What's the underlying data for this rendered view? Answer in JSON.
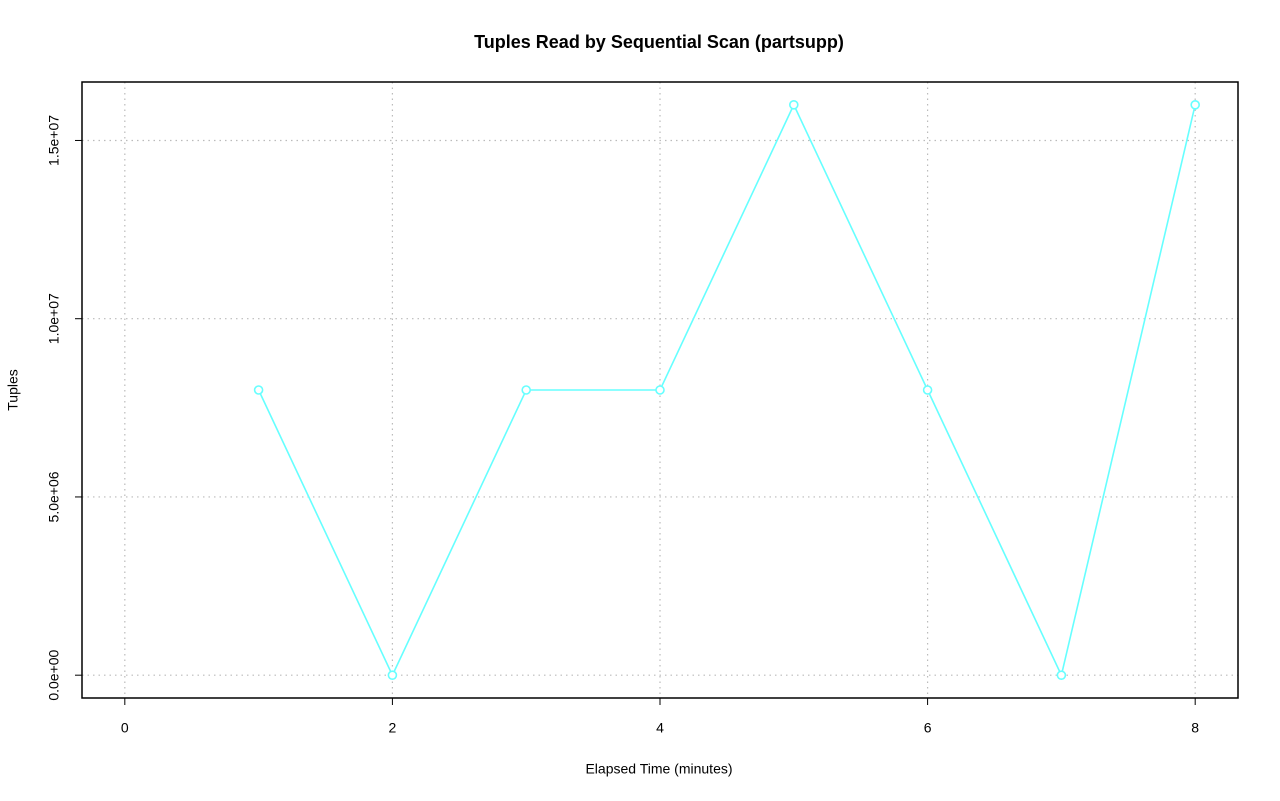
{
  "chart_data": {
    "type": "line",
    "title": "Tuples Read by Sequential Scan (partsupp)",
    "x_label": "Elapsed Time (minutes)",
    "y_label": "Tuples",
    "x": [
      1,
      2,
      3,
      4,
      5,
      6,
      7,
      8
    ],
    "series": [
      {
        "name": "partsupp",
        "color": "#66ffff",
        "values": [
          8000000,
          0,
          8000000,
          8000000,
          16000000,
          8000000,
          0,
          16000000
        ]
      }
    ],
    "xlim": [
      -0.32,
      8.32
    ],
    "ylim": [
      -640000,
      16640000
    ],
    "xticks": [
      0,
      2,
      4,
      6,
      8
    ],
    "yticks": [
      {
        "value": 0,
        "label": "0.0e+00"
      },
      {
        "value": 5000000,
        "label": "5.0e+06"
      },
      {
        "value": 10000000,
        "label": "1.0e+07"
      },
      {
        "value": 15000000,
        "label": "1.5e+07"
      }
    ],
    "grid": true
  }
}
